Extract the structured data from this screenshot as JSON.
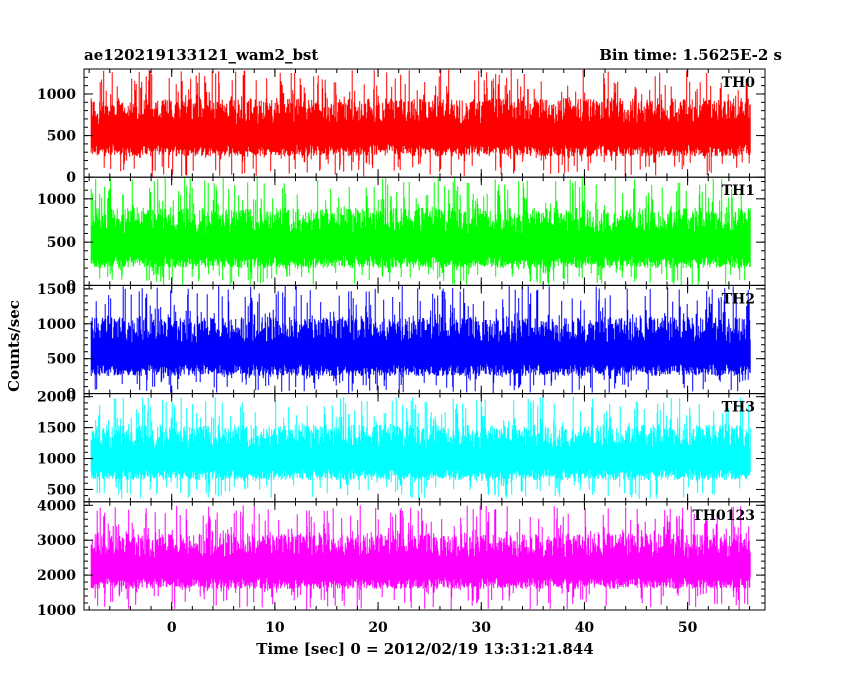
{
  "header": {
    "title": "ae120219133121_wam2_bst",
    "bin_time": "Bin time: 1.5625E-2 s"
  },
  "chart_data": {
    "type": "line",
    "title": "ae120219133121_wam2_bst",
    "subtitle": "Bin time: 1.5625E-2 s",
    "xlabel": "Time [sec] 0 = 2012/02/19 13:31:21.844",
    "ylabel": "Counts/sec",
    "xlim": [
      -8.5,
      57.5
    ],
    "x_ticks": [
      0,
      10,
      20,
      30,
      40,
      50
    ],
    "x_start": -7.8,
    "x_end": 56.1,
    "grid": false,
    "legend": "none",
    "panels": [
      {
        "name": "TH0",
        "color": "#ff0000",
        "ylim": [
          0,
          1300
        ],
        "y_ticks": [
          0,
          500,
          1000
        ],
        "typical_range": [
          250,
          950
        ],
        "extreme_range": [
          0,
          1300
        ]
      },
      {
        "name": "TH1",
        "color": "#00ff00",
        "ylim": [
          0,
          1250
        ],
        "y_ticks": [
          0,
          500,
          1000
        ],
        "typical_range": [
          200,
          900
        ],
        "extreme_range": [
          0,
          1250
        ]
      },
      {
        "name": "TH2",
        "color": "#0000ff",
        "ylim": [
          0,
          1550
        ],
        "y_ticks": [
          0,
          500,
          1000,
          1500
        ],
        "typical_range": [
          250,
          1100
        ],
        "extreme_range": [
          0,
          1550
        ]
      },
      {
        "name": "TH3",
        "color": "#00ffff",
        "ylim": [
          300,
          2050
        ],
        "y_ticks": [
          500,
          1000,
          1500,
          2000
        ],
        "typical_range": [
          650,
          1550
        ],
        "extreme_range": [
          350,
          2000
        ]
      },
      {
        "name": "TH0123",
        "color": "#ff00ff",
        "ylim": [
          1000,
          4100
        ],
        "y_ticks": [
          1000,
          2000,
          3000,
          4000
        ],
        "typical_range": [
          1600,
          3200
        ],
        "extreme_range": [
          1000,
          4000
        ]
      }
    ]
  }
}
